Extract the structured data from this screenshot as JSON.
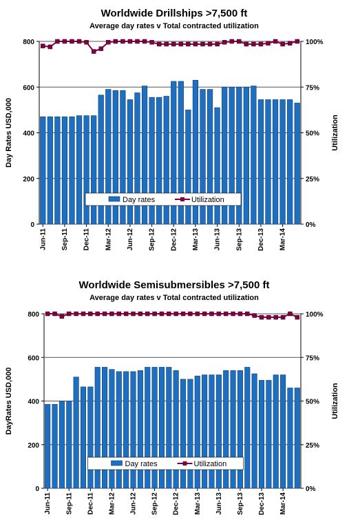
{
  "chart_data": [
    {
      "type": "bar-line",
      "title": "Worldwide Drillships >7,500 ft",
      "subtitle": "Average day rates v Total contracted utilization",
      "y_label": "Day Rates USD,000",
      "y2_label": "Utilization",
      "categories": [
        "Jun-11",
        null,
        null,
        "Sep-11",
        null,
        null,
        "Dec-11",
        null,
        null,
        "Mar-12",
        null,
        null,
        "Jun-12",
        null,
        null,
        "Sep-12",
        null,
        null,
        "Dec-12",
        null,
        null,
        "Mar-13",
        null,
        null,
        "Jun-13",
        null,
        null,
        "Sep-13",
        null,
        null,
        "Dec-13",
        null,
        null,
        "Mar-14",
        null,
        null
      ],
      "series": [
        {
          "name": "Day rates",
          "color": "#1f6fc0",
          "values": [
            470,
            470,
            470,
            470,
            470,
            475,
            475,
            475,
            565,
            590,
            585,
            585,
            545,
            575,
            605,
            555,
            555,
            560,
            625,
            625,
            500,
            630,
            590,
            590,
            510,
            600,
            600,
            600,
            600,
            605,
            545,
            545,
            545,
            545,
            545,
            530
          ]
        },
        {
          "name": "Utilization",
          "color": "#800040",
          "axis": "y2",
          "values": [
            97.5,
            97,
            100,
            100,
            100,
            100,
            99.5,
            94.5,
            96,
            99.5,
            100,
            100,
            100,
            100,
            100,
            99.5,
            98.5,
            98.5,
            98.5,
            98.5,
            98.5,
            98.5,
            98.5,
            98.5,
            98.5,
            99.5,
            100,
            100,
            98.5,
            98.5,
            98.5,
            99,
            100,
            98.5,
            99,
            100
          ]
        }
      ],
      "ylim": [
        0,
        800
      ],
      "yticks": [
        0,
        200,
        400,
        600,
        800
      ],
      "y2lim": [
        0,
        100
      ],
      "y2ticks": [
        {
          "value": 0,
          "label": "0%"
        },
        {
          "value": 25,
          "label": "25%"
        },
        {
          "value": 50,
          "label": "50%"
        },
        {
          "value": 75,
          "label": "75%"
        },
        {
          "value": 100,
          "label": "100%"
        }
      ],
      "grid": true,
      "legend": "bottom"
    },
    {
      "type": "bar-line",
      "title": "Worldwide Semisubmersibles >7,500 ft",
      "subtitle": "Average day rates v Total contracted utilization",
      "y_label": "DayRates USD,000",
      "y2_label": "Utilization",
      "categories": [
        "Jun-11",
        null,
        null,
        "Sep-11",
        null,
        null,
        "Dec-11",
        null,
        null,
        "Mar-12",
        null,
        null,
        "Jun-12",
        null,
        null,
        "Sep-12",
        null,
        null,
        "Dec-12",
        null,
        null,
        "Mar-13",
        null,
        null,
        "Jun-13",
        null,
        null,
        "Sep-13",
        null,
        null,
        "Dec-13",
        null,
        null,
        "Mar-14",
        null,
        null
      ],
      "series": [
        {
          "name": "Day rates",
          "color": "#1f6fc0",
          "values": [
            385,
            385,
            400,
            400,
            510,
            465,
            465,
            555,
            555,
            545,
            535,
            535,
            535,
            540,
            555,
            555,
            555,
            555,
            540,
            500,
            500,
            515,
            520,
            520,
            520,
            540,
            540,
            540,
            555,
            525,
            495,
            495,
            520,
            520,
            460,
            460
          ]
        },
        {
          "name": "Utilization",
          "color": "#800040",
          "axis": "y2",
          "values": [
            100,
            100,
            98.5,
            100,
            100,
            100,
            100,
            100,
            100,
            100,
            100,
            100,
            100,
            100,
            100,
            100,
            100,
            100,
            100,
            100,
            100,
            100,
            100,
            100,
            100,
            100,
            100,
            100,
            100,
            99,
            98,
            98,
            98,
            98,
            100,
            98
          ]
        }
      ],
      "ylim": [
        0,
        800
      ],
      "yticks": [
        0,
        200,
        400,
        600,
        800
      ],
      "y2lim": [
        0,
        100
      ],
      "y2ticks": [
        {
          "value": 0,
          "label": "0%"
        },
        {
          "value": 25,
          "label": "25%"
        },
        {
          "value": 50,
          "label": "50%"
        },
        {
          "value": 75,
          "label": "75%"
        },
        {
          "value": 100,
          "label": "100%"
        }
      ],
      "grid": true,
      "legend": "bottom"
    }
  ]
}
